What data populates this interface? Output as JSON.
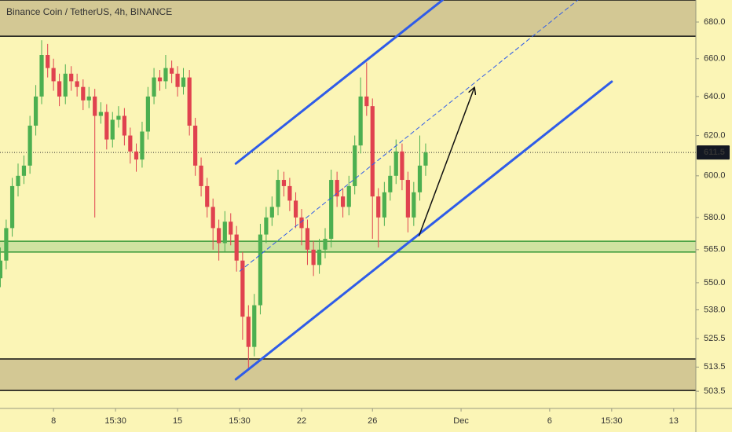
{
  "chart_data": {
    "type": "candlestick",
    "title": "Binance Coin / TetherUS, 4h, BINANCE",
    "log_scale": true,
    "grid": false,
    "up_color": "#4caf50",
    "down_color": "#e0424f",
    "x": [
      5,
      5.33,
      5.67,
      6,
      6.33,
      6.67,
      7,
      7.33,
      7.67,
      8,
      8.33,
      8.67,
      9,
      9.33,
      9.67,
      10,
      10.33,
      10.67,
      11,
      11.33,
      11.67,
      12,
      12.33,
      12.67,
      13,
      13.33,
      13.67,
      14,
      14.33,
      14.67,
      15,
      15.33,
      15.67,
      16,
      16.33,
      16.67,
      17,
      17.33,
      17.67,
      18,
      18.33,
      18.67,
      19,
      19.33,
      19.67,
      20,
      20.33,
      20.67,
      21,
      21.33,
      21.67,
      22,
      22.33,
      22.67,
      23,
      23.33,
      23.67,
      24,
      24.33,
      24.67,
      25,
      25.33,
      25.67,
      26,
      26.33,
      26.67,
      27,
      27.33,
      27.67,
      28,
      28.33,
      28.67,
      29
    ],
    "candles": [
      [
        552,
        566,
        548,
        560
      ],
      [
        560,
        579,
        556,
        575
      ],
      [
        575,
        599,
        571,
        595
      ],
      [
        595,
        606,
        590,
        600
      ],
      [
        600,
        610,
        596,
        605
      ],
      [
        605,
        630,
        601,
        625
      ],
      [
        625,
        646,
        620,
        640
      ],
      [
        640,
        670,
        636,
        662
      ],
      [
        662,
        668,
        650,
        655
      ],
      [
        655,
        660,
        643,
        648
      ],
      [
        648,
        652,
        635,
        640
      ],
      [
        640,
        657,
        636,
        652
      ],
      [
        652,
        656,
        643,
        648
      ],
      [
        648,
        652,
        640,
        645
      ],
      [
        645,
        649,
        633,
        638
      ],
      [
        638,
        645,
        634,
        640
      ],
      [
        640,
        644,
        580,
        630
      ],
      [
        630,
        637,
        626,
        632
      ],
      [
        632,
        636,
        613,
        618
      ],
      [
        618,
        632,
        614,
        628
      ],
      [
        628,
        635,
        624,
        630
      ],
      [
        630,
        634,
        615,
        620
      ],
      [
        620,
        624,
        606,
        612
      ],
      [
        612,
        616,
        602,
        608
      ],
      [
        608,
        627,
        604,
        622
      ],
      [
        622,
        645,
        618,
        640
      ],
      [
        640,
        655,
        636,
        650
      ],
      [
        650,
        654,
        643,
        648
      ],
      [
        648,
        662,
        644,
        655
      ],
      [
        655,
        659,
        647,
        652
      ],
      [
        652,
        656,
        640,
        645
      ],
      [
        645,
        655,
        641,
        650
      ],
      [
        650,
        654,
        620,
        625
      ],
      [
        625,
        629,
        600,
        605
      ],
      [
        605,
        609,
        590,
        595
      ],
      [
        595,
        599,
        580,
        585
      ],
      [
        585,
        589,
        565,
        575
      ],
      [
        575,
        579,
        560,
        568
      ],
      [
        568,
        583,
        564,
        578
      ],
      [
        578,
        582,
        567,
        572
      ],
      [
        572,
        576,
        555,
        560
      ],
      [
        560,
        564,
        525,
        535
      ],
      [
        535,
        540,
        513,
        522
      ],
      [
        522,
        545,
        518,
        540
      ],
      [
        540,
        577,
        536,
        572
      ],
      [
        572,
        585,
        568,
        580
      ],
      [
        580,
        590,
        576,
        585
      ],
      [
        585,
        603,
        581,
        598
      ],
      [
        598,
        602,
        590,
        595
      ],
      [
        595,
        599,
        583,
        588
      ],
      [
        588,
        592,
        575,
        580
      ],
      [
        580,
        584,
        567,
        575
      ],
      [
        575,
        579,
        558,
        565
      ],
      [
        565,
        569,
        553,
        558
      ],
      [
        558,
        570,
        554,
        565
      ],
      [
        565,
        575,
        561,
        570
      ],
      [
        570,
        603,
        566,
        598
      ],
      [
        598,
        602,
        585,
        590
      ],
      [
        590,
        594,
        580,
        585
      ],
      [
        585,
        600,
        581,
        595
      ],
      [
        595,
        620,
        591,
        615
      ],
      [
        615,
        650,
        611,
        640
      ],
      [
        640,
        658,
        630,
        635
      ],
      [
        635,
        639,
        570,
        590
      ],
      [
        590,
        594,
        566,
        580
      ],
      [
        580,
        597,
        576,
        592
      ],
      [
        592,
        605,
        588,
        600
      ],
      [
        600,
        618,
        596,
        612
      ],
      [
        612,
        616,
        593,
        598
      ],
      [
        598,
        602,
        573,
        580
      ],
      [
        580,
        597,
        576,
        592
      ],
      [
        592,
        620,
        588,
        605
      ],
      [
        605,
        616,
        600,
        611.5
      ]
    ],
    "xlim": [
      4.98,
      44.25
    ],
    "ylim": [
      496.5,
      692.3
    ],
    "xticks": [
      8,
      {
        "value": 11.5,
        "label": "15:30"
      },
      15,
      {
        "value": 18.5,
        "label": "15:30"
      },
      22,
      26,
      {
        "value": 31,
        "label": "Dec"
      },
      {
        "value": 36,
        "label": "6"
      },
      {
        "value": 39.5,
        "label": "15:30"
      },
      {
        "value": 43,
        "label": "13"
      }
    ],
    "yticks": [
      {
        "value": 680,
        "label": "680.0"
      },
      {
        "value": 660,
        "label": "660.0"
      },
      {
        "value": 640,
        "label": "640.0"
      },
      {
        "value": 620,
        "label": "620.0"
      },
      {
        "value": 600,
        "label": "600.0"
      },
      {
        "value": 580,
        "label": "580.0"
      },
      {
        "value": 565,
        "label": "565.0"
      },
      {
        "value": 550,
        "label": "550.0"
      },
      {
        "value": 538,
        "label": "538.0"
      },
      {
        "value": 525.5,
        "label": "525.5"
      },
      {
        "value": 513.5,
        "label": "513.5"
      },
      {
        "value": 503.5,
        "label": "503.5"
      }
    ],
    "last_price": 611.5,
    "zones": [
      {
        "range": [
          672.2,
          692.3
        ],
        "color": "#d3c894",
        "border": "#111111"
      },
      {
        "range": [
          563.9,
          568.9
        ],
        "color": "#cfe3a0",
        "border": "#3a9a3a"
      },
      {
        "range": [
          503.8,
          516.9
        ],
        "color": "#d3c894",
        "border": "#111111"
      }
    ],
    "lines": [
      {
        "x": [
          18.29,
          29.96
        ],
        "y": [
          606,
          692.3
        ],
        "color": "#2f5ce8",
        "width": 3,
        "dashed": false,
        "arrow": false
      },
      {
        "x": [
          18.29,
          39.5
        ],
        "y": [
          508.4,
          647.8
        ],
        "color": "#2f5ce8",
        "width": 3,
        "dashed": false,
        "arrow": false
      },
      {
        "x": [
          18.51,
          37.59
        ],
        "y": [
          555.2,
          692.3
        ],
        "color": "#2f5ce8",
        "width": 1,
        "dashed": true,
        "arrow": false
      },
      {
        "x": [
          28.63,
          31.74
        ],
        "y": [
          571.5,
          644.4
        ],
        "color": "#111111",
        "width": 1.5,
        "dashed": false,
        "arrow": true
      }
    ]
  }
}
